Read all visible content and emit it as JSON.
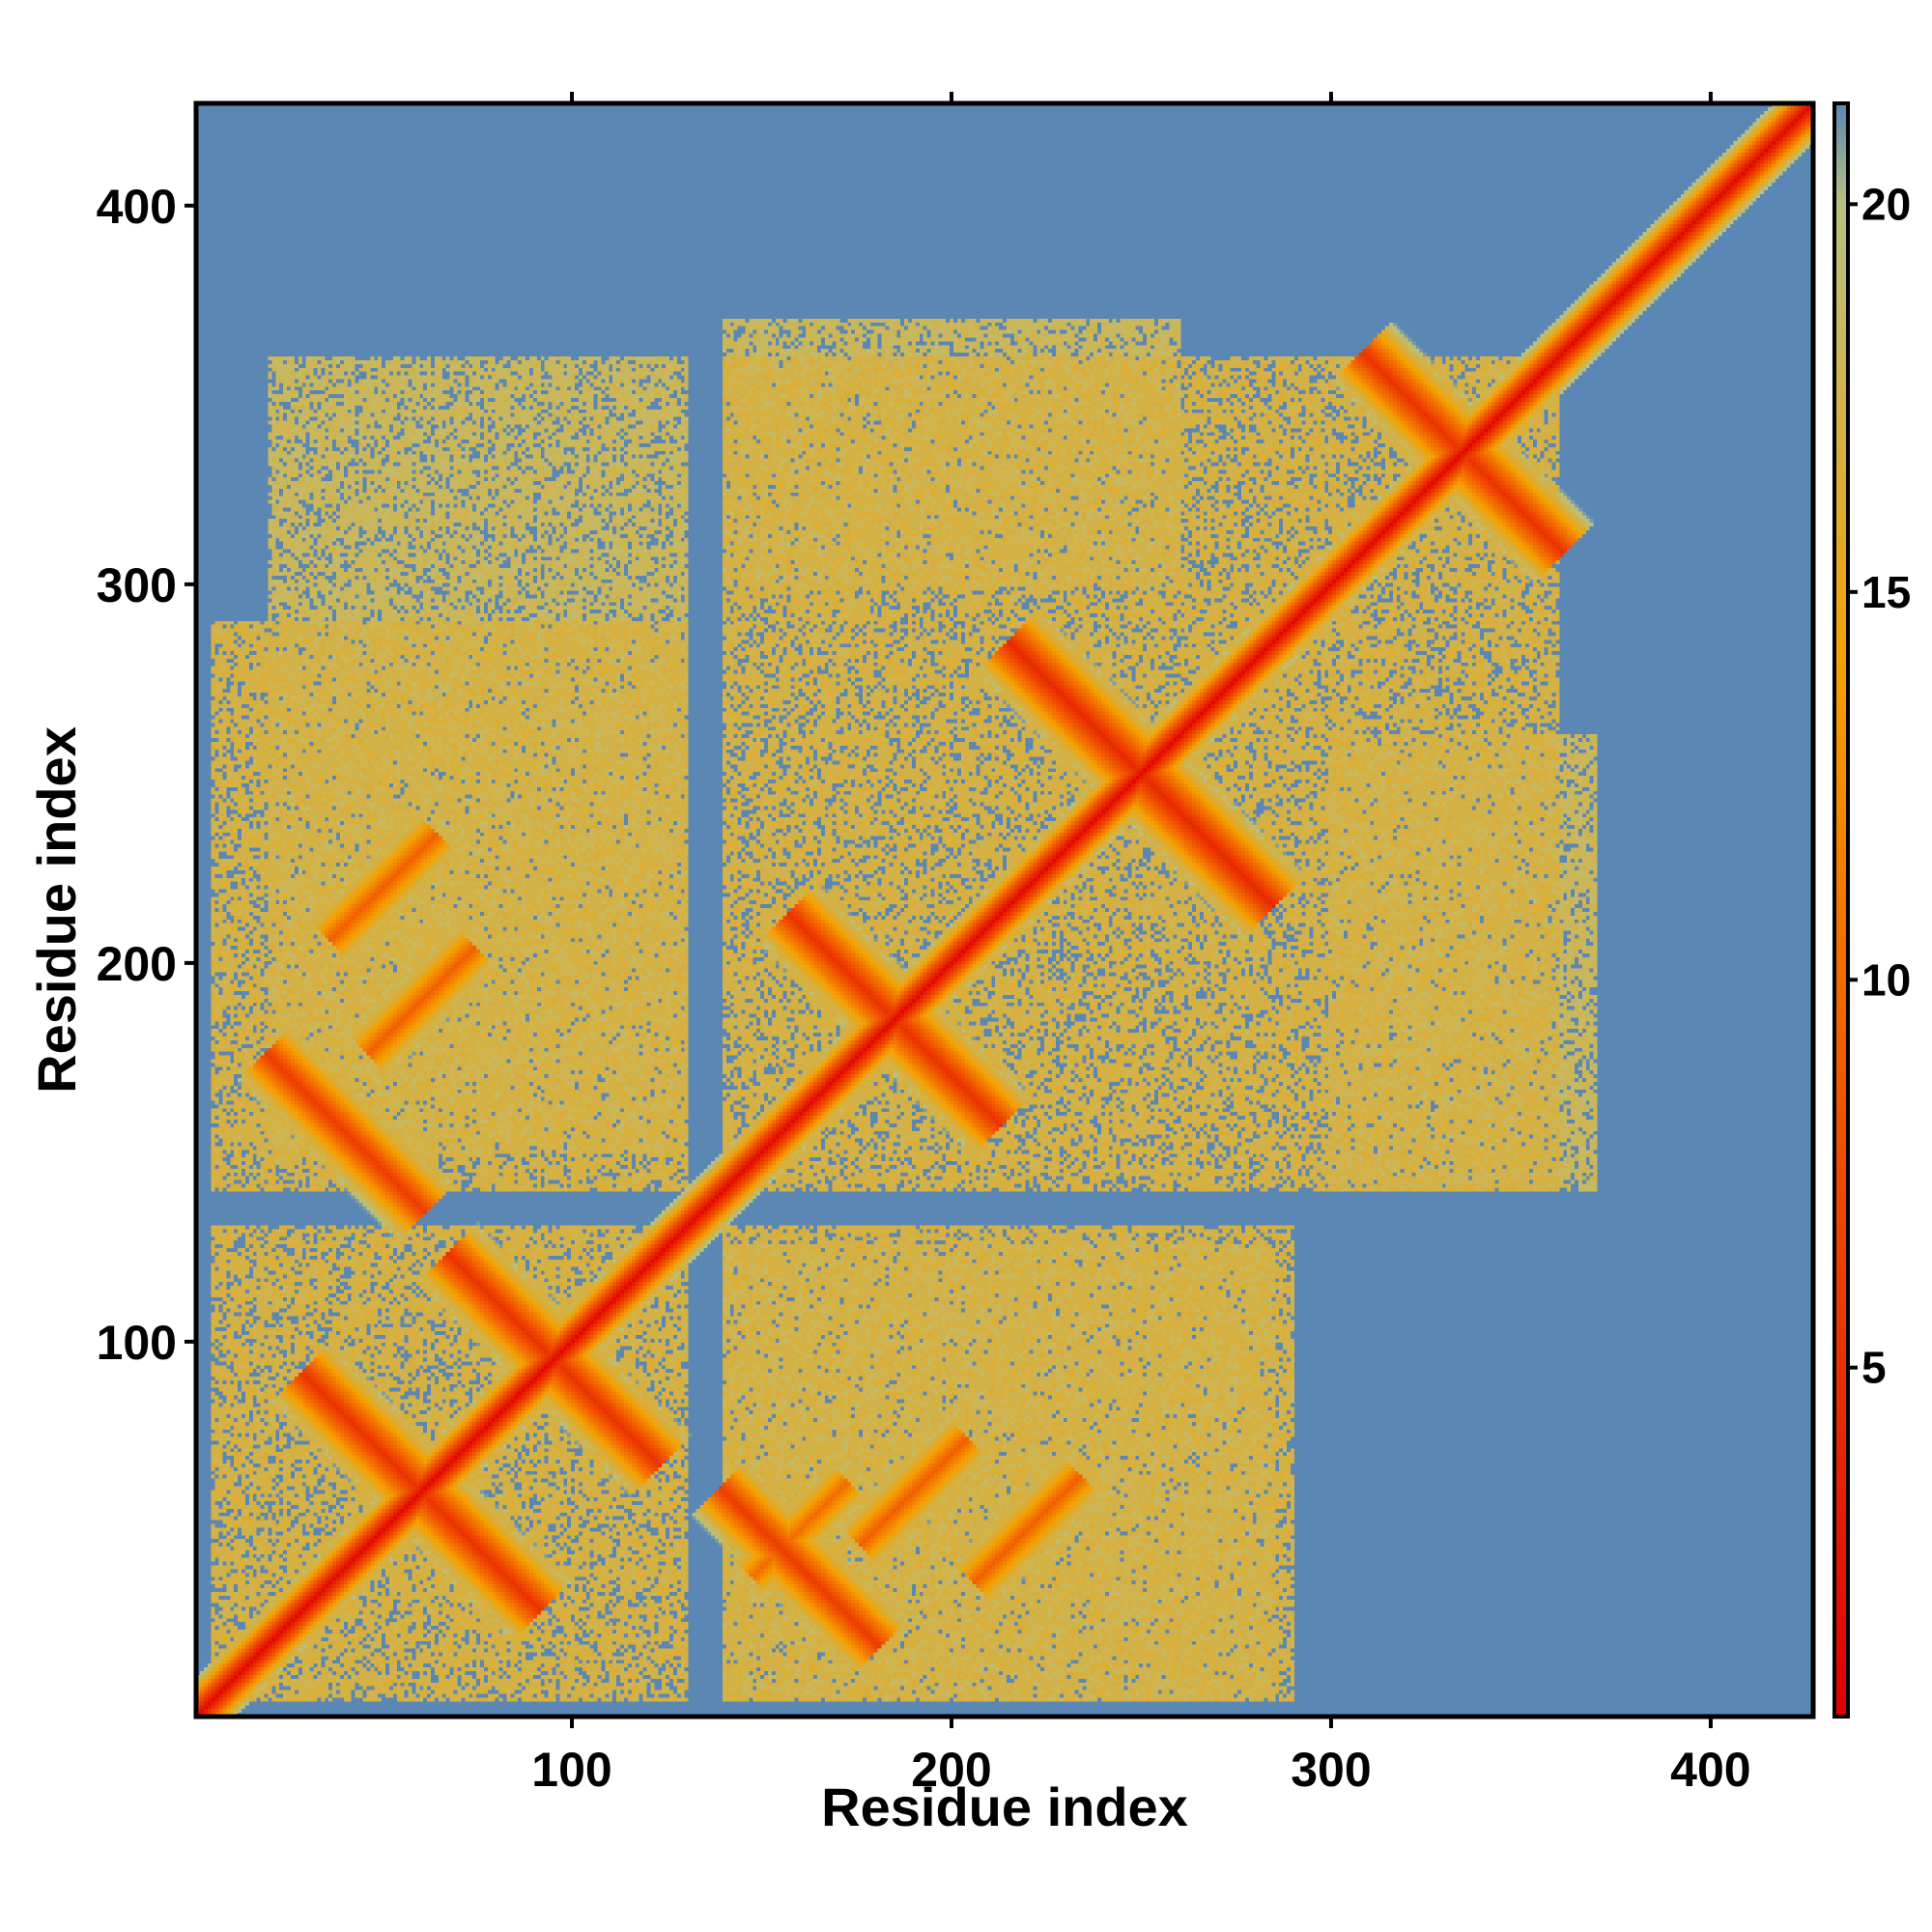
{
  "chart_data": {
    "type": "heatmap",
    "title": "",
    "xlabel": "Residue index",
    "ylabel": "Residue index",
    "xlim": [
      1,
      427
    ],
    "ylim": [
      1,
      427
    ],
    "x_ticks": [
      100,
      200,
      300,
      400
    ],
    "y_ticks": [
      100,
      200,
      300,
      400
    ],
    "colorbar": {
      "ticks": [
        5,
        10,
        15,
        20
      ],
      "range": [
        0.5,
        21.3
      ],
      "colors": [
        "#e00000",
        "#f05000",
        "#f5a000",
        "#b8c080",
        "#5b87b5",
        "#0000ff"
      ],
      "stops": [
        0,
        8,
        14,
        20,
        21.3
      ],
      "cap_distance": 20
    },
    "background_color": "#0000ff",
    "diagonal_distance": 1.0,
    "contact_bands": [
      {
        "center": [
          60,
          60
        ],
        "orientation": "anti",
        "half_length": 45,
        "min_distance": 5
      },
      {
        "center": [
          95,
          95
        ],
        "orientation": "anti",
        "half_length": 40,
        "min_distance": 5
      },
      {
        "center": [
          40,
          155
        ],
        "orientation": "anti",
        "half_length": 30,
        "min_distance": 6
      },
      {
        "center": [
          160,
          40
        ],
        "orientation": "anti",
        "half_length": 30,
        "min_distance": 6
      },
      {
        "center": [
          185,
          185
        ],
        "orientation": "anti",
        "half_length": 40,
        "min_distance": 5
      },
      {
        "center": [
          250,
          250
        ],
        "orientation": "anti",
        "half_length": 50,
        "min_distance": 4
      },
      {
        "center": [
          335,
          335
        ],
        "orientation": "anti",
        "half_length": 38,
        "min_distance": 5
      },
      {
        "center": [
          50,
          220
        ],
        "orientation": "parallel",
        "half_length": 20,
        "min_distance": 9
      },
      {
        "center": [
          220,
          50
        ],
        "orientation": "parallel",
        "half_length": 20,
        "min_distance": 9
      },
      {
        "center": [
          160,
          50
        ],
        "orientation": "parallel",
        "half_length": 18,
        "min_distance": 10
      },
      {
        "center": [
          60,
          190
        ],
        "orientation": "parallel",
        "half_length": 20,
        "min_distance": 9
      },
      {
        "center": [
          190,
          60
        ],
        "orientation": "parallel",
        "half_length": 20,
        "min_distance": 9
      }
    ],
    "contact_regions": [
      {
        "x": [
          5,
          130
        ],
        "y": [
          5,
          130
        ],
        "distance": 16
      },
      {
        "x": [
          5,
          130
        ],
        "y": [
          140,
          290
        ],
        "distance": 16
      },
      {
        "x": [
          140,
          290
        ],
        "y": [
          5,
          130
        ],
        "distance": 16
      },
      {
        "x": [
          140,
          360
        ],
        "y": [
          140,
          360
        ],
        "distance": 16
      },
      {
        "x": [
          140,
          285
        ],
        "y": [
          5,
          125
        ],
        "distance": 17
      },
      {
        "x": [
          300,
          370
        ],
        "y": [
          140,
          260
        ],
        "distance": 17
      },
      {
        "x": [
          140,
          260
        ],
        "y": [
          300,
          370
        ],
        "distance": 17
      },
      {
        "x": [
          20,
          130
        ],
        "y": [
          150,
          360
        ],
        "distance": 17
      }
    ]
  }
}
